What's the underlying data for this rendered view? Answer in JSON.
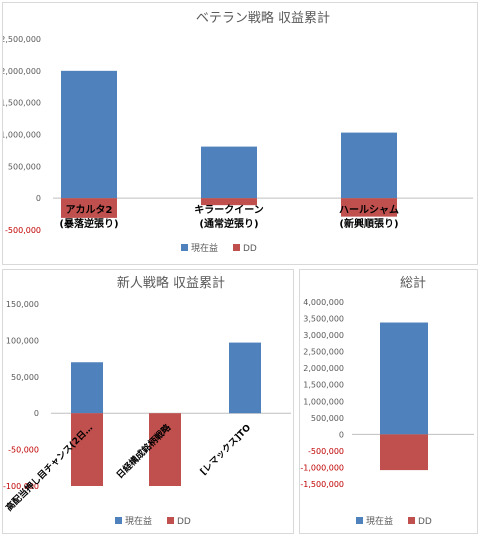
{
  "colors": {
    "current": "#4f81bd",
    "dd": "#c0504d",
    "axis": "#bfbfbf",
    "negative_tick": "#c00000"
  },
  "legend": {
    "current": "現在益",
    "dd": "DD"
  },
  "chart_data": [
    {
      "type": "bar",
      "stacked": true,
      "title": "ベテラン戦略 収益累計",
      "categories": [
        [
          "アカルタ2",
          "(暴落逆張り)"
        ],
        [
          "キラークイーン",
          "(通常逆張り)"
        ],
        [
          "ハールシャム",
          "(新興順張り)"
        ]
      ],
      "series": [
        {
          "name": "現在益",
          "values": [
            2000000,
            810000,
            1030000
          ]
        },
        {
          "name": "DD",
          "values": [
            -310000,
            -110000,
            -290000
          ]
        }
      ],
      "ylim": [
        -500000,
        2500000
      ],
      "yticks": [
        "2,500,000",
        "2,000,000",
        "1,500,000",
        "1,000,000",
        "500,000",
        "0",
        "-500,000"
      ],
      "grid": false,
      "legend_position": "bottom"
    },
    {
      "type": "bar",
      "stacked": true,
      "title": "新人戦略 収益累計",
      "categories": [
        [
          "高配当押し目チャンス(2日…"
        ],
        [
          "日経構成銘柄戦略"
        ],
        [
          "[レマックス]TO"
        ]
      ],
      "series": [
        {
          "name": "現在益",
          "values": [
            70000,
            0,
            97000
          ]
        },
        {
          "name": "DD",
          "values": [
            -100000,
            -100000,
            0
          ]
        }
      ],
      "ylim": [
        -100000,
        150000
      ],
      "yticks": [
        "150,000",
        "100,000",
        "50,000",
        "0",
        "-50,000",
        "-100,000"
      ],
      "grid": false,
      "legend_position": "bottom"
    },
    {
      "type": "bar",
      "stacked": true,
      "title": "総計",
      "categories": [
        [
          ""
        ]
      ],
      "series": [
        {
          "name": "現在益",
          "values": [
            3380000
          ]
        },
        {
          "name": "DD",
          "values": [
            -1080000
          ]
        }
      ],
      "ylim": [
        -1500000,
        4000000
      ],
      "yticks": [
        "4,000,000",
        "3,500,000",
        "3,000,000",
        "2,500,000",
        "2,000,000",
        "1,500,000",
        "1,000,000",
        "500,000",
        "0",
        "-500,000",
        "-1,000,000",
        "-1,500,000"
      ],
      "grid": false,
      "legend_position": "bottom"
    }
  ]
}
